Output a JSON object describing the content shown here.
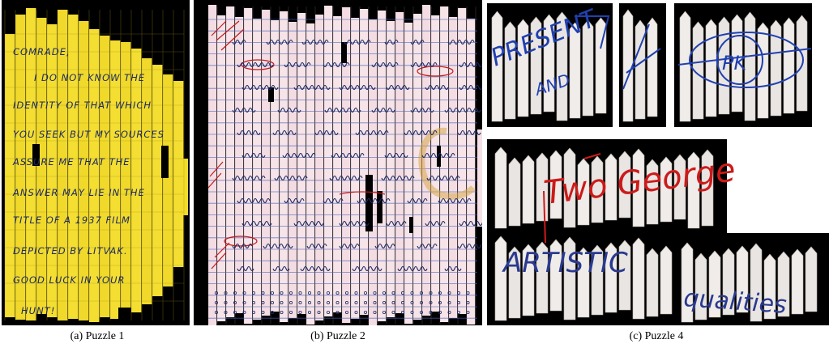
{
  "captions": {
    "a": "(a)  Puzzle 1",
    "b": "(b)  Puzzle 2",
    "c": "(c)  Puzzle 4"
  },
  "puzzle1": {
    "lines": [
      "COMRADE,",
      "I DO NOT KNOW THE",
      "IDENTITY OF THAT WHICH",
      "YOU SEEK BUT MY SOURCES",
      "ASSURE ME THAT THE",
      "ANSWER MAY LIE IN THE",
      "TITLE OF A 1937 FILM",
      "DEPICTED BY LITVAK.",
      "GOOD LUCK IN YOUR",
      "HUNT!"
    ]
  },
  "puzzle4": {
    "words": [
      "PRESENT",
      "AND",
      "PK",
      "Two George",
      "ARTISTIC",
      "qualities"
    ]
  },
  "colors": {
    "yellow": "#f2dc2c",
    "ink": "#1c2a66",
    "red_ink": "#c41a1a",
    "pink_paper": "#f5e1e6",
    "white_paper": "#ece8e6",
    "background": "#000000"
  }
}
